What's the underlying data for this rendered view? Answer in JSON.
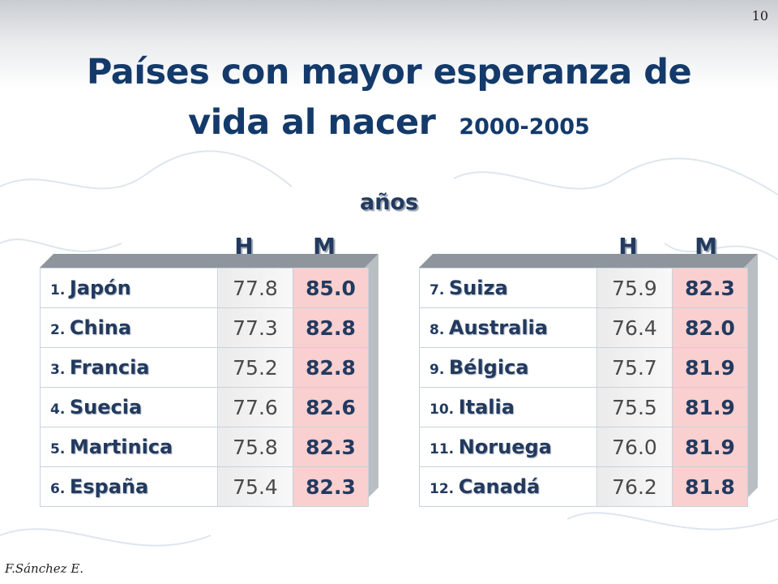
{
  "page_number": "10",
  "title": {
    "line1": "Países con mayor esperanza de",
    "line2": "vida al nacer",
    "years": "2000-2005"
  },
  "unit_label": "años",
  "column_headers": {
    "h": "H",
    "m": "M"
  },
  "left_table": [
    {
      "rank": "1.",
      "country": "Japón",
      "h": "77.8",
      "m": "85.0"
    },
    {
      "rank": "2.",
      "country": "China",
      "h": "77.3",
      "m": "82.8"
    },
    {
      "rank": "3.",
      "country": "Francia",
      "h": "75.2",
      "m": "82.8"
    },
    {
      "rank": "4.",
      "country": "Suecia",
      "h": "77.6",
      "m": "82.6"
    },
    {
      "rank": "5.",
      "country": "Martinica",
      "h": "75.8",
      "m": "82.3"
    },
    {
      "rank": "6.",
      "country": "España",
      "h": "75.4",
      "m": "82.3"
    }
  ],
  "right_table": [
    {
      "rank": "7.",
      "country": "Suiza",
      "h": "75.9",
      "m": "82.3"
    },
    {
      "rank": "8.",
      "country": "Australia",
      "h": "76.4",
      "m": "82.0"
    },
    {
      "rank": "9.",
      "country": "Bélgica",
      "h": "75.7",
      "m": "81.9"
    },
    {
      "rank": "10.",
      "country": "Italia",
      "h": "75.5",
      "m": "81.9"
    },
    {
      "rank": "11.",
      "country": "Noruega",
      "h": "76.0",
      "m": "81.9"
    },
    {
      "rank": "12.",
      "country": "Canadá",
      "h": "76.2",
      "m": "81.8"
    }
  ],
  "author": "F.Sánchez E.",
  "colors": {
    "title": "#133a6a",
    "text": "#233a5f",
    "m_cell_bg": "#f9cfcf",
    "h_cell_bg": "#ebebeb",
    "depth": "#8e959c"
  }
}
